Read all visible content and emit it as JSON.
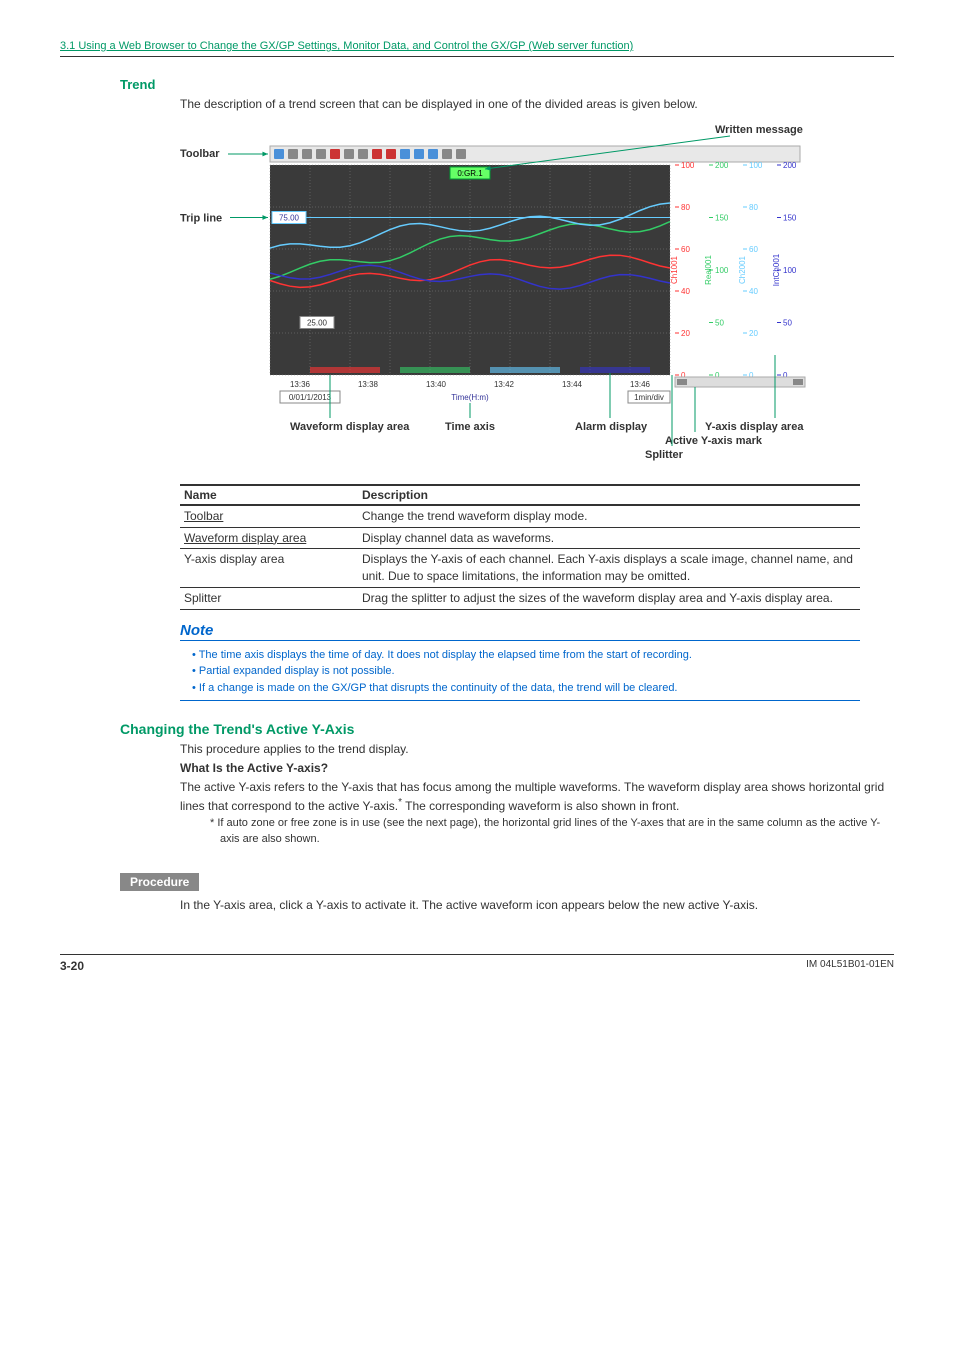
{
  "header": {
    "link_text": "3.1  Using a Web Browser to Change the GX/GP Settings, Monitor Data, and Control the GX/GP (Web server function)"
  },
  "trend": {
    "title": "Trend",
    "intro": "The description of a trend screen that can be displayed in one of the divided areas is given below.",
    "labels": {
      "toolbar": "Toolbar",
      "trip_line": "Trip line",
      "written_message": "Written message",
      "waveform_display_area": "Waveform display area",
      "time_axis": "Time axis",
      "alarm_display": "Alarm display",
      "yaxis_display_area": "Y-axis display area",
      "active_yaxis_mark": "Active Y-axis mark",
      "splitter": "Splitter"
    },
    "chart": {
      "trip_line_value": "75.00",
      "box_value": "25.00",
      "gr_label": "0:GR.1",
      "x_ticks": [
        "13:36",
        "13:38",
        "13:40",
        "13:42",
        "13:44",
        "13:46"
      ],
      "x_date": "0/01/1/2013",
      "x_axis_label": "Time(H:m)",
      "x_unit": "1min/div",
      "bg": "#3a3a3a",
      "grid_color": "#808080",
      "waveforms": [
        {
          "name": "Ch1001",
          "color": "#ff3333",
          "y_start": 0.55,
          "y_end": 0.45
        },
        {
          "name": "Real001",
          "color": "#33cc66",
          "y_start": 0.5,
          "y_end": 0.25
        },
        {
          "name": "Ch2001",
          "color": "#66ccff",
          "y_start": 0.4,
          "y_end": 0.2
        },
        {
          "name": "IntCh001",
          "color": "#3333cc",
          "y_start": 0.52,
          "y_end": 0.55
        }
      ],
      "scales": [
        {
          "color": "#ff3333",
          "ticks": [
            "100",
            "80",
            "60",
            "40",
            "20",
            "0"
          ],
          "label": "Ch1001"
        },
        {
          "color": "#33cc66",
          "ticks": [
            "200",
            "150",
            "100",
            "50",
            "0"
          ],
          "label": "Real001"
        },
        {
          "color": "#66ccff",
          "ticks": [
            "100",
            "80",
            "60",
            "40",
            "20",
            "0"
          ],
          "label": "Ch2001"
        },
        {
          "color": "#3333cc",
          "ticks": [
            "200",
            "150",
            "100",
            "50",
            "0"
          ],
          "label": "IntCh001"
        }
      ]
    },
    "table": {
      "headers": {
        "name": "Name",
        "desc": "Description"
      },
      "rows": [
        {
          "name": "Toolbar",
          "name_underline": true,
          "desc": "Change the trend waveform display mode."
        },
        {
          "name": "Waveform display area",
          "name_underline": true,
          "desc": "Display channel data as waveforms."
        },
        {
          "name": "Y-axis display area",
          "name_underline": false,
          "desc": "Displays the Y-axis of each channel. Each Y-axis displays a scale image, channel name, and unit. Due to space limitations, the information may be omitted."
        },
        {
          "name": "Splitter",
          "name_underline": false,
          "desc": "Drag the splitter to adjust the sizes of the waveform display area and Y-axis display area."
        }
      ]
    },
    "note": {
      "heading": "Note",
      "items": [
        "The time axis displays the time of day. It does not display the elapsed time from the start of recording.",
        "Partial expanded display is not possible.",
        "If a change is made on the GX/GP that disrupts the continuity of the data, the trend will be cleared."
      ]
    }
  },
  "changing": {
    "title": "Changing the Trend's Active Y-Axis",
    "intro": "This procedure applies to the trend display.",
    "what_is_title": "What Is the Active Y-axis?",
    "what_is_body": "The active Y-axis refers to the Y-axis that has focus among the multiple waveforms. The waveform display area shows horizontal grid lines that correspond to the active Y-axis.",
    "what_is_body2": " The corresponding waveform is also shown in front.",
    "asterisk": "*   If auto zone or free zone is in use (see the next page), the horizontal grid lines of the Y-axes that are in the same column as the active Y-axis are also shown.",
    "procedure_label": "Procedure",
    "procedure_body": "In the Y-axis area, click a Y-axis to activate it. The active waveform icon appears below the new active Y-axis."
  },
  "footer": {
    "page": "3-20",
    "doc": "IM 04L51B01-01EN"
  }
}
